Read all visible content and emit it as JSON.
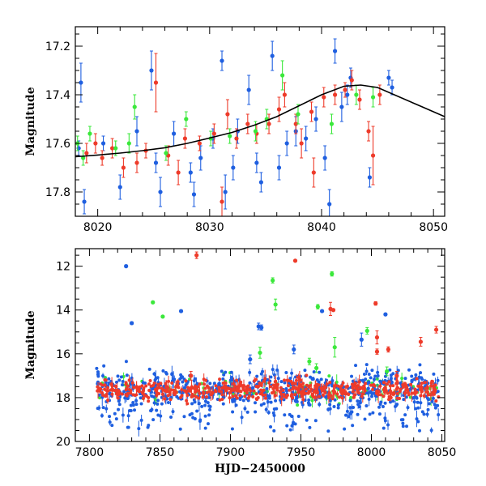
{
  "colors": {
    "blue": "#1f5fe0",
    "red": "#ee3b2a",
    "green": "#3be83b",
    "model": "#000000"
  },
  "chart_data": [
    {
      "type": "scatter",
      "name": "top-panel",
      "xlabel": "",
      "ylabel": "Magnitude",
      "xlim": [
        8018,
        8051
      ],
      "ylim": [
        17.9,
        17.12
      ],
      "y_inverted": true,
      "xticks": [
        "8020",
        "8030",
        "8040",
        "8050"
      ],
      "xtick_values": [
        8020,
        8030,
        8040,
        8050
      ],
      "yticks": [
        "17.2",
        "17.4",
        "17.6",
        "17.8"
      ],
      "ytick_values": [
        17.2,
        17.4,
        17.6,
        17.8
      ],
      "model_curve": {
        "x": [
          8018,
          8020,
          8022,
          8024,
          8026,
          8028,
          8030,
          8032,
          8034,
          8036,
          8038,
          8040,
          8042,
          8043.5,
          8045,
          8047,
          8049,
          8051
        ],
        "y": [
          17.655,
          17.648,
          17.64,
          17.63,
          17.618,
          17.6,
          17.578,
          17.555,
          17.525,
          17.49,
          17.445,
          17.4,
          17.365,
          17.36,
          17.37,
          17.41,
          17.45,
          17.49
        ]
      },
      "series": [
        {
          "color": "blue",
          "points": [
            [
              8018.3,
              17.62,
              0.03
            ],
            [
              8018.5,
              17.35,
              0.08
            ],
            [
              8018.8,
              17.84,
              0.05
            ],
            [
              8020.5,
              17.6,
              0.03
            ],
            [
              8022.0,
              17.78,
              0.05
            ],
            [
              8023.5,
              17.55,
              0.06
            ],
            [
              8024.8,
              17.3,
              0.08
            ],
            [
              8025.2,
              17.68,
              0.04
            ],
            [
              8025.6,
              17.8,
              0.06
            ],
            [
              8026.8,
              17.56,
              0.05
            ],
            [
              8028.3,
              17.72,
              0.04
            ],
            [
              8028.6,
              17.81,
              0.05
            ],
            [
              8029.2,
              17.66,
              0.05
            ],
            [
              8030.3,
              17.58,
              0.04
            ],
            [
              8031.1,
              17.26,
              0.04
            ],
            [
              8031.4,
              17.8,
              0.07
            ],
            [
              8032.1,
              17.7,
              0.05
            ],
            [
              8032.5,
              17.55,
              0.05
            ],
            [
              8033.5,
              17.38,
              0.06
            ],
            [
              8034.2,
              17.68,
              0.04
            ],
            [
              8034.6,
              17.76,
              0.04
            ],
            [
              8035.6,
              17.24,
              0.06
            ],
            [
              8036.2,
              17.7,
              0.05
            ],
            [
              8036.9,
              17.6,
              0.05
            ],
            [
              8037.7,
              17.55,
              0.06
            ],
            [
              8038.6,
              17.58,
              0.05
            ],
            [
              8039.5,
              17.5,
              0.05
            ],
            [
              8040.3,
              17.66,
              0.05
            ],
            [
              8040.7,
              17.85,
              0.06
            ],
            [
              8041.2,
              17.22,
              0.05
            ],
            [
              8041.8,
              17.45,
              0.06
            ],
            [
              8042.3,
              17.4,
              0.04
            ],
            [
              8042.6,
              17.33,
              0.04
            ],
            [
              8044.3,
              17.74,
              0.04
            ],
            [
              8046.0,
              17.33,
              0.03
            ],
            [
              8046.3,
              17.37,
              0.03
            ]
          ]
        },
        {
          "color": "red",
          "points": [
            [
              8019.0,
              17.64,
              0.04
            ],
            [
              8019.8,
              17.6,
              0.04
            ],
            [
              8020.4,
              17.66,
              0.03
            ],
            [
              8021.3,
              17.62,
              0.04
            ],
            [
              8022.3,
              17.7,
              0.04
            ],
            [
              8023.5,
              17.68,
              0.04
            ],
            [
              8024.3,
              17.63,
              0.03
            ],
            [
              8025.2,
              17.35,
              0.12
            ],
            [
              8026.3,
              17.65,
              0.04
            ],
            [
              8027.2,
              17.72,
              0.05
            ],
            [
              8027.8,
              17.58,
              0.04
            ],
            [
              8029.1,
              17.6,
              0.03
            ],
            [
              8030.4,
              17.56,
              0.04
            ],
            [
              8031.1,
              17.84,
              0.06
            ],
            [
              8031.6,
              17.48,
              0.06
            ],
            [
              8032.4,
              17.58,
              0.04
            ],
            [
              8033.4,
              17.52,
              0.04
            ],
            [
              8034.2,
              17.56,
              0.04
            ],
            [
              8035.3,
              17.52,
              0.04
            ],
            [
              8036.2,
              17.46,
              0.05
            ],
            [
              8036.7,
              17.4,
              0.05
            ],
            [
              8037.7,
              17.52,
              0.04
            ],
            [
              8038.2,
              17.6,
              0.06
            ],
            [
              8039.1,
              17.47,
              0.04
            ],
            [
              8039.3,
              17.72,
              0.06
            ],
            [
              8040.2,
              17.41,
              0.04
            ],
            [
              8041.2,
              17.4,
              0.04
            ],
            [
              8042.1,
              17.38,
              0.03
            ],
            [
              8042.7,
              17.34,
              0.04
            ],
            [
              8043.4,
              17.42,
              0.04
            ],
            [
              8044.2,
              17.55,
              0.04
            ],
            [
              8044.6,
              17.65,
              0.12
            ],
            [
              8045.2,
              17.4,
              0.04
            ]
          ]
        },
        {
          "color": "green",
          "points": [
            [
              8018.2,
              17.6,
              0.03
            ],
            [
              8018.7,
              17.66,
              0.03
            ],
            [
              8019.3,
              17.56,
              0.03
            ],
            [
              8021.6,
              17.62,
              0.03
            ],
            [
              8022.8,
              17.6,
              0.04
            ],
            [
              8023.3,
              17.45,
              0.05
            ],
            [
              8026.1,
              17.64,
              0.03
            ],
            [
              8027.9,
              17.5,
              0.03
            ],
            [
              8030.1,
              17.58,
              0.03
            ],
            [
              8031.8,
              17.57,
              0.03
            ],
            [
              8034.1,
              17.55,
              0.04
            ],
            [
              8035.1,
              17.5,
              0.04
            ],
            [
              8036.5,
              17.32,
              0.06
            ],
            [
              8037.9,
              17.48,
              0.04
            ],
            [
              8040.9,
              17.52,
              0.04
            ],
            [
              8043.1,
              17.4,
              0.04
            ],
            [
              8044.6,
              17.41,
              0.04
            ]
          ]
        }
      ]
    },
    {
      "type": "scatter",
      "name": "bottom-panel",
      "xlabel": "HJD−2450000",
      "ylabel": "Magnitude",
      "xlim": [
        7790,
        8052
      ],
      "ylim": [
        20,
        11.2
      ],
      "y_inverted": true,
      "xticks": [
        "7800",
        "7850",
        "7900",
        "7950",
        "8000",
        "8050"
      ],
      "xtick_values": [
        7800,
        7850,
        7900,
        7950,
        8000,
        8050
      ],
      "yticks": [
        "12",
        "14",
        "16",
        "18",
        "20"
      ],
      "ytick_values": [
        12,
        14,
        16,
        18,
        20
      ],
      "baseline_magnitude": 17.65,
      "baseline_start": 7805,
      "baseline_end": 8048,
      "outliers": [
        {
          "color": "blue",
          "x": 7826,
          "y": 12.0,
          "e": 0.05
        },
        {
          "color": "blue",
          "x": 7830,
          "y": 14.6,
          "e": 0.06
        },
        {
          "color": "blue",
          "x": 7865,
          "y": 14.05,
          "e": 0.05
        },
        {
          "color": "blue",
          "x": 7920,
          "y": 14.75,
          "e": 0.15
        },
        {
          "color": "blue",
          "x": 7922,
          "y": 14.8,
          "e": 0.12
        },
        {
          "color": "blue",
          "x": 7914,
          "y": 16.25,
          "e": 0.2
        },
        {
          "color": "blue",
          "x": 7993,
          "y": 15.35,
          "e": 0.3
        },
        {
          "color": "blue",
          "x": 8010,
          "y": 14.2,
          "e": 0.05
        },
        {
          "color": "blue",
          "x": 7945,
          "y": 15.8,
          "e": 0.2
        },
        {
          "color": "blue",
          "x": 7965,
          "y": 14.05,
          "e": 0.05
        },
        {
          "color": "red",
          "x": 7876,
          "y": 11.5,
          "e": 0.15
        },
        {
          "color": "red",
          "x": 7946,
          "y": 11.75,
          "e": 0.05
        },
        {
          "color": "red",
          "x": 7971,
          "y": 13.95,
          "e": 0.3
        },
        {
          "color": "red",
          "x": 7973,
          "y": 14.0,
          "e": 0.05
        },
        {
          "color": "red",
          "x": 8003,
          "y": 13.7,
          "e": 0.08
        },
        {
          "color": "red",
          "x": 8004,
          "y": 15.25,
          "e": 0.3
        },
        {
          "color": "red",
          "x": 8004,
          "y": 15.9,
          "e": 0.12
        },
        {
          "color": "red",
          "x": 8012,
          "y": 15.8,
          "e": 0.12
        },
        {
          "color": "red",
          "x": 8035,
          "y": 15.45,
          "e": 0.2
        },
        {
          "color": "red",
          "x": 8046,
          "y": 14.9,
          "e": 0.15
        },
        {
          "color": "red",
          "x": 7872,
          "y": 17.0,
          "e": 0.2
        },
        {
          "color": "red",
          "x": 8018,
          "y": 17.0,
          "e": 0.2
        },
        {
          "color": "green",
          "x": 7845,
          "y": 13.65,
          "e": 0.05
        },
        {
          "color": "green",
          "x": 7852,
          "y": 14.3,
          "e": 0.05
        },
        {
          "color": "green",
          "x": 7930,
          "y": 12.65,
          "e": 0.12
        },
        {
          "color": "green",
          "x": 7932,
          "y": 13.75,
          "e": 0.25
        },
        {
          "color": "green",
          "x": 7972,
          "y": 12.35,
          "e": 0.1
        },
        {
          "color": "green",
          "x": 7962,
          "y": 13.85,
          "e": 0.1
        },
        {
          "color": "green",
          "x": 7956,
          "y": 16.35,
          "e": 0.15
        },
        {
          "color": "green",
          "x": 7974,
          "y": 15.7,
          "e": 0.45
        },
        {
          "color": "green",
          "x": 7921,
          "y": 15.95,
          "e": 0.25
        },
        {
          "color": "green",
          "x": 7997,
          "y": 14.95,
          "e": 0.15
        },
        {
          "color": "green",
          "x": 7961,
          "y": 16.65,
          "e": 0.2
        },
        {
          "color": "green",
          "x": 8011,
          "y": 16.8,
          "e": 0.2
        }
      ]
    }
  ]
}
